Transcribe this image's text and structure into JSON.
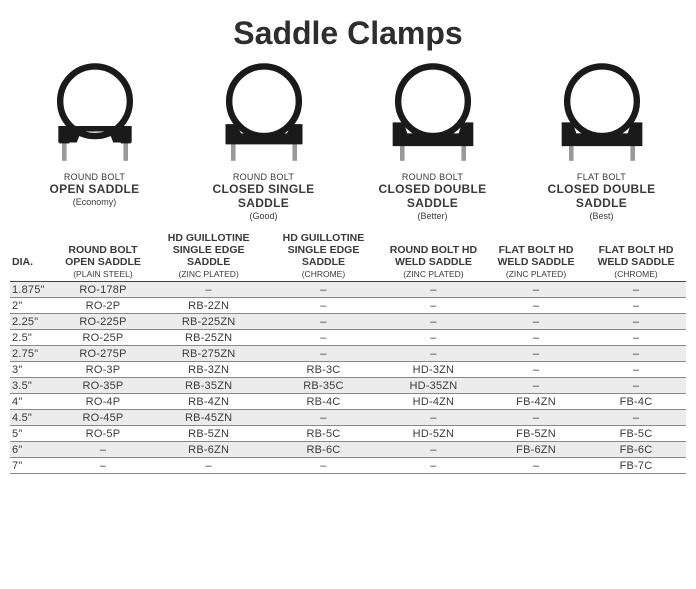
{
  "title": "Saddle Clamps",
  "products": [
    {
      "top": "ROUND BOLT",
      "name": "OPEN SADDLE",
      "sub": "(Economy)",
      "type": "open"
    },
    {
      "top": "ROUND BOLT",
      "name": "CLOSED SINGLE\nSADDLE",
      "sub": "(Good)",
      "type": "single"
    },
    {
      "top": "ROUND BOLT",
      "name": "CLOSED DOUBLE\nSADDLE",
      "sub": "(Better)",
      "type": "double"
    },
    {
      "top": "FLAT BOLT",
      "name": "CLOSED DOUBLE\nSADDLE",
      "sub": "(Best)",
      "type": "double"
    }
  ],
  "columns": [
    {
      "h1": "DIA.",
      "h2": ""
    },
    {
      "h1": "ROUND BOLT\nOPEN SADDLE",
      "h2": "(PLAIN STEEL)"
    },
    {
      "h1": "HD GUILLOTINE\nSINGLE EDGE SADDLE",
      "h2": "(ZINC PLATED)"
    },
    {
      "h1": "HD GUILLOTINE\nSINGLE EDGE SADDLE",
      "h2": "(CHROME)"
    },
    {
      "h1": "ROUND BOLT HD\nWELD SADDLE",
      "h2": "(ZINC PLATED)"
    },
    {
      "h1": "FLAT BOLT HD\nWELD SADDLE",
      "h2": "(ZINC PLATED)"
    },
    {
      "h1": "FLAT BOLT HD\nWELD SADDLE",
      "h2": "(CHROME)"
    }
  ],
  "rows": [
    {
      "dia": "1.875\"",
      "a": "RO-178P",
      "b": "–",
      "c": "–",
      "d": "–",
      "e": "–",
      "f": "–",
      "shade": true
    },
    {
      "dia": "2\"",
      "a": "RO-2P",
      "b": "RB-2ZN",
      "c": "–",
      "d": "–",
      "e": "–",
      "f": "–",
      "shade": false
    },
    {
      "dia": "2.25\"",
      "a": "RO-225P",
      "b": "RB-225ZN",
      "c": "–",
      "d": "–",
      "e": "–",
      "f": "–",
      "shade": true
    },
    {
      "dia": "2.5\"",
      "a": "RO-25P",
      "b": "RB-25ZN",
      "c": "–",
      "d": "–",
      "e": "–",
      "f": "–",
      "shade": false
    },
    {
      "dia": "2.75\"",
      "a": "RO-275P",
      "b": "RB-275ZN",
      "c": "–",
      "d": "–",
      "e": "–",
      "f": "–",
      "shade": true
    },
    {
      "dia": "3\"",
      "a": "RO-3P",
      "b": "RB-3ZN",
      "c": "RB-3C",
      "d": "HD-3ZN",
      "e": "–",
      "f": "–",
      "shade": false
    },
    {
      "dia": "3.5\"",
      "a": "RO-35P",
      "b": "RB-35ZN",
      "c": "RB-35C",
      "d": "HD-35ZN",
      "e": "–",
      "f": "–",
      "shade": true
    },
    {
      "dia": "4\"",
      "a": "RO-4P",
      "b": "RB-4ZN",
      "c": "RB-4C",
      "d": "HD-4ZN",
      "e": "FB-4ZN",
      "f": "FB-4C",
      "shade": false
    },
    {
      "dia": "4.5\"",
      "a": "RO-45P",
      "b": "RB-45ZN",
      "c": "–",
      "d": "–",
      "e": "–",
      "f": "–",
      "shade": true
    },
    {
      "dia": "5\"",
      "a": "RO-5P",
      "b": "RB-5ZN",
      "c": "RB-5C",
      "d": "HD-5ZN",
      "e": "FB-5ZN",
      "f": "FB-5C",
      "shade": false
    },
    {
      "dia": "6\"",
      "a": "–",
      "b": "RB-6ZN",
      "c": "RB-6C",
      "d": "–",
      "e": "FB-6ZN",
      "f": "FB-6C",
      "shade": true
    },
    {
      "dia": "7\"",
      "a": "–",
      "b": "–",
      "c": "–",
      "d": "–",
      "e": "–",
      "f": "FB-7C",
      "shade": false
    }
  ],
  "style": {
    "title_color": "#2e2e2e",
    "text_color": "#3a3a3a",
    "shade_bg": "#ececec",
    "rule_color": "#888888",
    "clamp_dark": "#1a1a1a",
    "clamp_bolt": "#999999"
  }
}
